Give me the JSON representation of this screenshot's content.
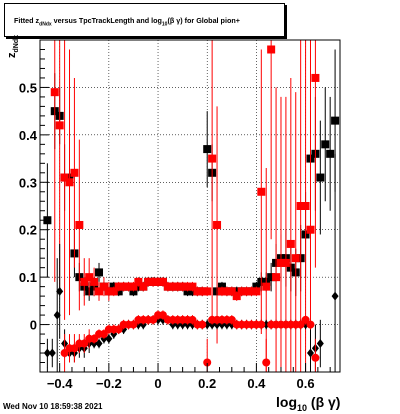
{
  "title": {
    "part1": "Fitted  z",
    "sub1": "dNdx",
    "part2": "  versus TpcTrackLength and log",
    "sub2": "10",
    "part3": "(β γ) for Global pion+"
  },
  "footer": "Wed Nov 10 18:59:38 2021",
  "axis_labels": {
    "y_main": "z",
    "y_sub": "dNdx",
    "x_main": "log",
    "x_sub": "10",
    "x_tail": "(β γ)"
  },
  "chart_data": {
    "type": "scatter",
    "xlim": [
      -0.48,
      0.74
    ],
    "ylim": [
      -0.1,
      0.6
    ],
    "grid": true,
    "x_ticks": [
      -0.4,
      -0.2,
      0,
      0.2,
      0.4,
      0.6
    ],
    "x_tick_labels": [
      "−0.4",
      "−0.2",
      "0",
      "0.2",
      "0.4",
      "0.6"
    ],
    "y_ticks": [
      0,
      0.1,
      0.2,
      0.3,
      0.4,
      0.5
    ],
    "y_tick_labels": [
      "0",
      "0.1",
      "0.2",
      "0.3",
      "0.4",
      "0.5"
    ],
    "colors": {
      "black": "#000000",
      "red": "#ff0000"
    },
    "series": [
      {
        "color": "#000000",
        "marker": "square",
        "x": [
          -0.45,
          -0.42,
          -0.4,
          -0.38,
          -0.36,
          -0.34,
          -0.32,
          -0.3,
          -0.28,
          -0.26,
          -0.24,
          -0.22,
          -0.2,
          -0.18,
          -0.16,
          -0.14,
          -0.12,
          -0.1,
          -0.08,
          -0.06,
          -0.04,
          -0.02,
          0.0,
          0.02,
          0.04,
          0.06,
          0.08,
          0.1,
          0.12,
          0.14,
          0.16,
          0.18,
          0.2,
          0.22,
          0.24,
          0.26,
          0.28,
          0.3,
          0.32,
          0.34,
          0.36,
          0.38,
          0.4,
          0.42,
          0.44,
          0.46,
          0.48,
          0.5,
          0.52,
          0.54,
          0.56,
          0.58,
          0.6,
          0.62,
          0.64,
          0.66,
          0.68,
          0.7,
          0.72
        ],
        "y": [
          0.22,
          0.45,
          0.44,
          0.31,
          0.31,
          0.15,
          0.1,
          0.08,
          0.07,
          0.08,
          0.11,
          0.08,
          0.07,
          0.08,
          0.07,
          0.08,
          0.08,
          0.07,
          0.08,
          0.08,
          0.09,
          0.09,
          0.09,
          0.09,
          0.08,
          0.08,
          0.08,
          0.08,
          0.07,
          0.07,
          0.07,
          0.07,
          0.37,
          0.32,
          0.07,
          0.08,
          0.07,
          0.07,
          0.07,
          0.07,
          0.07,
          0.07,
          0.08,
          0.09,
          0.09,
          0.1,
          0.13,
          0.14,
          0.14,
          0.12,
          0.11,
          0.14,
          0.19,
          0.35,
          0.36,
          0.31,
          0.38,
          0.36,
          0.43
        ],
        "yerr": [
          0.12,
          0.08,
          0.06,
          0.07,
          0.05,
          0.05,
          0.03,
          0.02,
          0.02,
          0.02,
          0.02,
          0.01,
          0.01,
          0.01,
          0.01,
          0.01,
          0.01,
          0.01,
          0.01,
          0.01,
          0.01,
          0.01,
          0.01,
          0.01,
          0.01,
          0.01,
          0.01,
          0.01,
          0.01,
          0.01,
          0.01,
          0.01,
          0.08,
          0.06,
          0.01,
          0.01,
          0.01,
          0.01,
          0.01,
          0.01,
          0.01,
          0.01,
          0.01,
          0.02,
          0.02,
          0.03,
          0.04,
          0.05,
          0.06,
          0.05,
          0.05,
          0.07,
          0.09,
          0.1,
          0.12,
          0.12,
          0.12,
          0.12,
          0.15
        ]
      },
      {
        "color": "#ff0000",
        "marker": "square",
        "x": [
          -0.42,
          -0.4,
          -0.38,
          -0.36,
          -0.34,
          -0.32,
          -0.3,
          -0.28,
          -0.26,
          -0.24,
          -0.22,
          -0.2,
          -0.18,
          -0.16,
          -0.14,
          -0.12,
          -0.1,
          -0.08,
          -0.06,
          -0.04,
          -0.02,
          0.0,
          0.02,
          0.04,
          0.06,
          0.08,
          0.1,
          0.12,
          0.14,
          0.16,
          0.18,
          0.2,
          0.22,
          0.24,
          0.26,
          0.28,
          0.3,
          0.32,
          0.34,
          0.36,
          0.38,
          0.4,
          0.42,
          0.44,
          0.46,
          0.48,
          0.5,
          0.52,
          0.54,
          0.56,
          0.58,
          0.6,
          0.62,
          0.64
        ],
        "y": [
          0.49,
          0.42,
          0.31,
          0.3,
          0.32,
          0.21,
          0.09,
          0.1,
          0.09,
          0.07,
          0.08,
          0.07,
          0.07,
          0.08,
          0.08,
          0.08,
          0.08,
          0.09,
          0.08,
          0.09,
          0.09,
          0.09,
          0.09,
          0.08,
          0.08,
          0.08,
          0.08,
          0.08,
          0.08,
          0.07,
          0.07,
          0.07,
          0.35,
          0.21,
          0.07,
          0.07,
          0.07,
          0.06,
          0.07,
          0.07,
          0.07,
          0.07,
          0.28,
          0.08,
          0.58,
          0.1,
          0.13,
          0.13,
          0.17,
          0.14,
          0.25,
          0.25,
          0.2,
          0.52
        ],
        "yerr": [
          0.4,
          0.35,
          0.3,
          0.28,
          0.2,
          0.18,
          0.05,
          0.04,
          0.03,
          0.02,
          0.02,
          0.02,
          0.01,
          0.01,
          0.01,
          0.01,
          0.01,
          0.01,
          0.01,
          0.01,
          0.01,
          0.01,
          0.01,
          0.01,
          0.01,
          0.01,
          0.01,
          0.01,
          0.01,
          0.01,
          0.01,
          0.01,
          0.35,
          0.25,
          0.01,
          0.01,
          0.01,
          0.01,
          0.01,
          0.01,
          0.01,
          0.01,
          0.3,
          0.25,
          0.4,
          0.4,
          0.35,
          0.35,
          0.35,
          0.35,
          0.4,
          0.4,
          0.4,
          0.4
        ]
      },
      {
        "color": "#000000",
        "marker": "diamond",
        "x": [
          -0.45,
          -0.43,
          -0.41,
          -0.4,
          -0.38,
          -0.36,
          -0.34,
          -0.32,
          -0.3,
          -0.28,
          -0.26,
          -0.24,
          -0.22,
          -0.2,
          -0.18,
          -0.16,
          -0.14,
          -0.12,
          -0.1,
          -0.08,
          -0.06,
          -0.04,
          -0.02,
          0.0,
          0.02,
          0.04,
          0.06,
          0.08,
          0.1,
          0.12,
          0.14,
          0.16,
          0.18,
          0.2,
          0.22,
          0.24,
          0.26,
          0.28,
          0.3,
          0.32,
          0.34,
          0.36,
          0.38,
          0.4,
          0.42,
          0.44,
          0.46,
          0.48,
          0.5,
          0.52,
          0.54,
          0.56,
          0.58,
          0.6,
          0.62,
          0.64,
          0.66,
          0.72
        ],
        "y": [
          -0.06,
          -0.06,
          0.02,
          0.07,
          -0.04,
          -0.06,
          -0.06,
          -0.05,
          -0.05,
          -0.04,
          -0.04,
          -0.04,
          -0.03,
          -0.03,
          -0.02,
          -0.01,
          -0.01,
          0.0,
          0.0,
          0.0,
          0.0,
          0.01,
          0.01,
          0.01,
          0.01,
          0.01,
          0.0,
          0.0,
          0.0,
          0.0,
          0.0,
          0.0,
          0.0,
          0.0,
          0.0,
          0.0,
          0.0,
          0.0,
          0.0,
          0.0,
          0.0,
          0.0,
          0.0,
          0.0,
          0.0,
          0.0,
          0.0,
          0.0,
          0.0,
          0.0,
          0.0,
          0.0,
          0.0,
          0.0,
          -0.06,
          -0.05,
          -0.04,
          0.06
        ],
        "yerr": [
          0.03,
          0.03,
          0.12,
          0.1,
          0.03,
          0.02,
          0.02,
          0.02,
          0.02,
          0.02,
          0.01,
          0.01,
          0.01,
          0.01,
          0.01,
          0.01,
          0.01,
          0.01,
          0.01,
          0.01,
          0.01,
          0.01,
          0.01,
          0.01,
          0.01,
          0.01,
          0.01,
          0.01,
          0.01,
          0.01,
          0.01,
          0.01,
          0.01,
          0.01,
          0.01,
          0.01,
          0.01,
          0.01,
          0.01,
          0.01,
          0.01,
          0.01,
          0.01,
          0.01,
          0.01,
          0.01,
          0.01,
          0.01,
          0.01,
          0.01,
          0.01,
          0.01,
          0.01,
          0.01,
          0.05,
          0.05,
          0.05,
          0.3
        ]
      },
      {
        "color": "#ff0000",
        "marker": "circle",
        "x": [
          -0.38,
          -0.36,
          -0.34,
          -0.32,
          -0.3,
          -0.28,
          -0.26,
          -0.24,
          -0.22,
          -0.2,
          -0.18,
          -0.16,
          -0.14,
          -0.12,
          -0.1,
          -0.08,
          -0.06,
          -0.04,
          -0.02,
          0.0,
          0.02,
          0.04,
          0.06,
          0.08,
          0.1,
          0.12,
          0.14,
          0.16,
          0.18,
          0.2,
          0.22,
          0.24,
          0.26,
          0.28,
          0.3,
          0.32,
          0.34,
          0.36,
          0.38,
          0.4,
          0.42,
          0.44,
          0.46,
          0.48,
          0.5,
          0.52,
          0.54,
          0.56,
          0.58,
          0.6,
          0.62,
          0.64
        ],
        "y": [
          -0.06,
          -0.05,
          -0.05,
          -0.04,
          -0.04,
          -0.03,
          -0.03,
          -0.02,
          -0.02,
          -0.01,
          -0.01,
          -0.01,
          0.0,
          0.0,
          0.0,
          0.01,
          0.01,
          0.01,
          0.01,
          0.02,
          0.02,
          0.01,
          0.01,
          0.01,
          0.01,
          0.01,
          0.01,
          0.0,
          0.0,
          -0.08,
          0.01,
          0.01,
          0.01,
          0.01,
          0.01,
          0.0,
          0.0,
          0.0,
          0.0,
          0.0,
          0.0,
          -0.08,
          0.0,
          0.0,
          0.0,
          0.0,
          0.0,
          0.0,
          0.0,
          0.01,
          0.0,
          -0.07
        ],
        "yerr": [
          0.04,
          0.03,
          0.03,
          0.02,
          0.02,
          0.02,
          0.01,
          0.01,
          0.01,
          0.01,
          0.01,
          0.01,
          0.01,
          0.01,
          0.01,
          0.01,
          0.01,
          0.01,
          0.01,
          0.01,
          0.01,
          0.01,
          0.01,
          0.01,
          0.01,
          0.01,
          0.01,
          0.01,
          0.01,
          0.05,
          0.01,
          0.01,
          0.01,
          0.01,
          0.01,
          0.01,
          0.01,
          0.01,
          0.01,
          0.01,
          0.01,
          0.05,
          0.01,
          0.01,
          0.01,
          0.01,
          0.01,
          0.01,
          0.01,
          0.01,
          0.01,
          0.04
        ]
      }
    ]
  }
}
